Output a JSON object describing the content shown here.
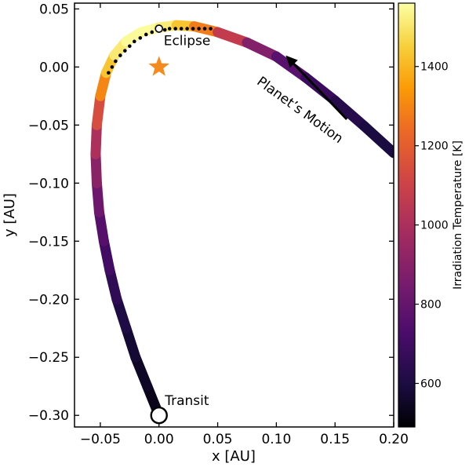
{
  "chart_data": {
    "type": "scatter",
    "xlabel": "x [AU]",
    "ylabel": "y [AU]",
    "xlim": [
      -0.072,
      0.2
    ],
    "ylim": [
      -0.31,
      0.055
    ],
    "xticks": [
      -0.05,
      0.0,
      0.05,
      0.1,
      0.15,
      0.2
    ],
    "xtick_labels": [
      "−0.05",
      "0.00",
      "0.05",
      "0.10",
      "0.15",
      "0.20"
    ],
    "yticks": [
      0.05,
      0.0,
      -0.05,
      -0.1,
      -0.15,
      -0.2,
      -0.25,
      -0.3
    ],
    "ytick_labels": [
      "0.05",
      "0.00",
      "−0.05",
      "−0.10",
      "−0.15",
      "−0.20",
      "−0.25",
      "−0.30"
    ],
    "colorbar": {
      "label": "Irradiation Temperature [K]",
      "range": [
        490,
        1560
      ],
      "ticks": [
        600,
        800,
        1000,
        1200,
        1400
      ],
      "tick_labels": [
        "600",
        "800",
        "1000",
        "1200",
        "1400"
      ],
      "colormap": "inferno"
    },
    "star": {
      "x": 0.0,
      "y": 0.0,
      "color": "#f58a1f"
    },
    "orbit": [
      {
        "x": 0.0,
        "y": -0.3,
        "t": 520
      },
      {
        "x": -0.01,
        "y": -0.275,
        "t": 540
      },
      {
        "x": -0.02,
        "y": -0.25,
        "t": 560
      },
      {
        "x": -0.028,
        "y": -0.225,
        "t": 590
      },
      {
        "x": -0.036,
        "y": -0.2,
        "t": 630
      },
      {
        "x": -0.042,
        "y": -0.175,
        "t": 680
      },
      {
        "x": -0.047,
        "y": -0.15,
        "t": 730
      },
      {
        "x": -0.051,
        "y": -0.125,
        "t": 790
      },
      {
        "x": -0.053,
        "y": -0.1,
        "t": 860
      },
      {
        "x": -0.054,
        "y": -0.075,
        "t": 950
      },
      {
        "x": -0.053,
        "y": -0.05,
        "t": 1060
      },
      {
        "x": -0.05,
        "y": -0.025,
        "t": 1220
      },
      {
        "x": -0.045,
        "y": -0.005,
        "t": 1380
      },
      {
        "x": -0.038,
        "y": 0.01,
        "t": 1480
      },
      {
        "x": -0.028,
        "y": 0.022,
        "t": 1540
      },
      {
        "x": -0.015,
        "y": 0.03,
        "t": 1555
      },
      {
        "x": 0.0,
        "y": 0.034,
        "t": 1550
      },
      {
        "x": 0.015,
        "y": 0.036,
        "t": 1480
      },
      {
        "x": 0.03,
        "y": 0.035,
        "t": 1380
      },
      {
        "x": 0.05,
        "y": 0.03,
        "t": 1180
      },
      {
        "x": 0.075,
        "y": 0.021,
        "t": 960
      },
      {
        "x": 0.1,
        "y": 0.009,
        "t": 810
      },
      {
        "x": 0.125,
        "y": -0.009,
        "t": 720
      },
      {
        "x": 0.15,
        "y": -0.029,
        "t": 650
      },
      {
        "x": 0.175,
        "y": -0.051,
        "t": 610
      },
      {
        "x": 0.2,
        "y": -0.074,
        "t": 580
      }
    ],
    "eclipse_dots": [
      {
        "x": -0.043,
        "y": -0.005
      },
      {
        "x": -0.04,
        "y": 0.0
      },
      {
        "x": -0.037,
        "y": 0.005
      },
      {
        "x": -0.033,
        "y": 0.01
      },
      {
        "x": -0.029,
        "y": 0.014
      },
      {
        "x": -0.025,
        "y": 0.018
      },
      {
        "x": -0.021,
        "y": 0.022
      },
      {
        "x": -0.016,
        "y": 0.025
      },
      {
        "x": -0.011,
        "y": 0.028
      },
      {
        "x": -0.006,
        "y": 0.03
      },
      {
        "x": 0.005,
        "y": 0.032
      },
      {
        "x": 0.009,
        "y": 0.033
      },
      {
        "x": 0.014,
        "y": 0.033
      },
      {
        "x": 0.019,
        "y": 0.033
      },
      {
        "x": 0.024,
        "y": 0.033
      },
      {
        "x": 0.029,
        "y": 0.033
      },
      {
        "x": 0.034,
        "y": 0.033
      },
      {
        "x": 0.039,
        "y": 0.033
      },
      {
        "x": 0.044,
        "y": 0.033
      }
    ],
    "eclipse_marker": {
      "x": 0.0,
      "y": 0.033
    },
    "transit_marker": {
      "x": 0.0,
      "y": -0.3
    },
    "annotations": {
      "eclipse": {
        "text": "Eclipse",
        "x": 0.004,
        "y": 0.019
      },
      "transit": {
        "text": "Transit",
        "x": 0.005,
        "y": -0.291
      },
      "motion": {
        "text": "Planet’s Motion",
        "x": 0.118,
        "y": -0.04,
        "angle_deg": 36
      },
      "arrow": {
        "from": {
          "x": 0.16,
          "y": -0.045
        },
        "to": {
          "x": 0.108,
          "y": 0.01
        }
      }
    }
  }
}
